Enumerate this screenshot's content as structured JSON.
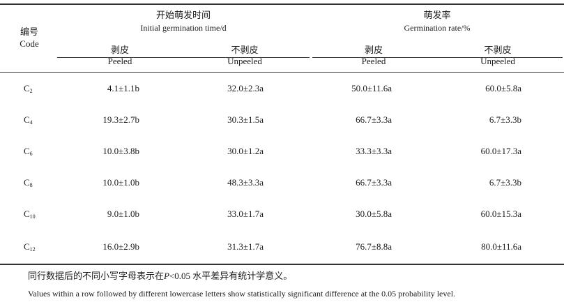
{
  "header": {
    "code_zh": "编号",
    "code_en": "Code",
    "group1_zh": "开始萌发时间",
    "group1_en": "Initial germination time/d",
    "group2_zh": "萌发率",
    "group2_en": "Germination rate/%",
    "peeled_zh": "剥皮",
    "peeled_en": "Peeled",
    "unpeeled_zh": "不剥皮",
    "unpeeled_en": "Unpeeled"
  },
  "rows": [
    {
      "code": "C",
      "sub": "2",
      "time_peeled": "4.1±1.1b",
      "time_unpeeled": "32.0±2.3a",
      "rate_peeled": "50.0±11.6a",
      "rate_unpeeled": "60.0±5.8a"
    },
    {
      "code": "C",
      "sub": "4",
      "time_peeled": "19.3±2.7b",
      "time_unpeeled": "30.3±1.5a",
      "rate_peeled": "66.7±3.3a",
      "rate_unpeeled": "6.7±3.3b"
    },
    {
      "code": "C",
      "sub": "6",
      "time_peeled": "10.0±3.8b",
      "time_unpeeled": "30.0±1.2a",
      "rate_peeled": "33.3±3.3a",
      "rate_unpeeled": "60.0±17.3a"
    },
    {
      "code": "C",
      "sub": "8",
      "time_peeled": "10.0±1.0b",
      "time_unpeeled": "48.3±3.3a",
      "rate_peeled": "66.7±3.3a",
      "rate_unpeeled": "6.7±3.3b"
    },
    {
      "code": "C",
      "sub": "10",
      "time_peeled": "9.0±1.0b",
      "time_unpeeled": "33.0±1.7a",
      "rate_peeled": "30.0±5.8a",
      "rate_unpeeled": "60.0±15.3a"
    },
    {
      "code": "C",
      "sub": "12",
      "time_peeled": "16.0±2.9b",
      "time_unpeeled": "31.3±1.7a",
      "rate_peeled": "76.7±8.8a",
      "rate_unpeeled": "80.0±11.6a"
    }
  ],
  "notes": {
    "zh_before": "同行数据后的不同小写字母表示在",
    "zh_p": "P",
    "zh_after": "<0.05 水平差异有统计学意义。",
    "en": "Values within a row followed by different lowercase letters show statistically significant difference at the 0.05 probability level."
  }
}
